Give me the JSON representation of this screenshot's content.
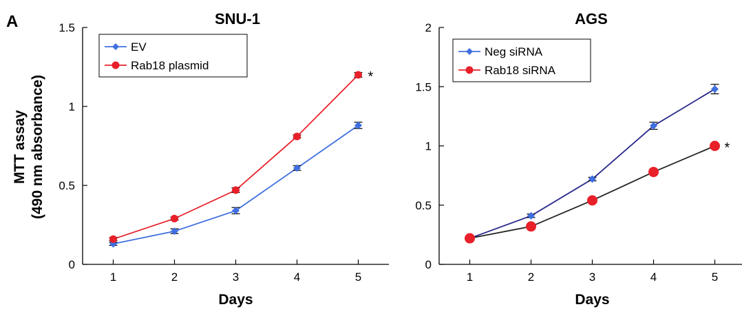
{
  "panel_label": "A",
  "ylabel_line1": "MTT assay",
  "ylabel_line2": "(490 nm absorbance)",
  "chart_data": [
    {
      "type": "line",
      "title": "SNU-1",
      "xlabel": "Days",
      "ylabel": "MTT assay (490 nm absorbance)",
      "x": [
        1,
        2,
        3,
        4,
        5
      ],
      "xlim": [
        0.5,
        5.5
      ],
      "ylim": [
        0,
        1.5
      ],
      "yticks": [
        0,
        0.5,
        1,
        1.5
      ],
      "ytick_labels": [
        "0",
        "0.5",
        "1",
        "1.5"
      ],
      "legend_position": "top-left",
      "grid": false,
      "annotations": [
        {
          "text": "*",
          "x": 5,
          "y": 1.2
        }
      ],
      "series": [
        {
          "name": "EV",
          "values": [
            0.13,
            0.21,
            0.34,
            0.61,
            0.88
          ],
          "errors": [
            0.01,
            0.015,
            0.02,
            0.015,
            0.02
          ],
          "color": "#3f6fe0",
          "marker": "diamond"
        },
        {
          "name": "Rab18 plasmid",
          "values": [
            0.16,
            0.29,
            0.47,
            0.81,
            1.2
          ],
          "errors": [
            0.01,
            0.01,
            0.015,
            0.01,
            0.015
          ],
          "color": "#e8202a",
          "marker": "circle"
        }
      ]
    },
    {
      "type": "line",
      "title": "AGS",
      "xlabel": "Days",
      "ylabel": "",
      "x": [
        1,
        2,
        3,
        4,
        5
      ],
      "xlim": [
        0.5,
        5.5
      ],
      "ylim": [
        0,
        2
      ],
      "yticks": [
        0,
        0.5,
        1,
        1.5,
        2
      ],
      "ytick_labels": [
        "0",
        "0.5",
        "1",
        "1.5",
        "2"
      ],
      "legend_position": "top-left",
      "grid": false,
      "annotations": [
        {
          "text": "*",
          "x": 5,
          "y": 1.0
        }
      ],
      "series": [
        {
          "name": "Neg siRNA",
          "values": [
            0.22,
            0.41,
            0.72,
            1.17,
            1.48
          ],
          "errors": [
            0.01,
            0.015,
            0.015,
            0.03,
            0.04
          ],
          "color": "#3f6fe0",
          "marker": "diamond",
          "line_color": "#25258a"
        },
        {
          "name": "Rab18 siRNA",
          "values": [
            0.22,
            0.32,
            0.54,
            0.78,
            1.0
          ],
          "errors": [
            0.01,
            0.01,
            0.01,
            0.01,
            0.015
          ],
          "color": "#e8202a",
          "marker": "circle",
          "line_color": "#222222"
        }
      ]
    }
  ]
}
